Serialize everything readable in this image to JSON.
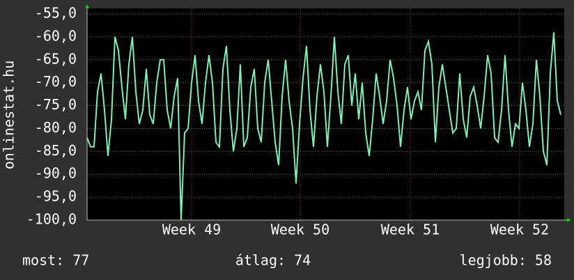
{
  "chart_data": {
    "type": "line",
    "y_label": "onlinestat.hu",
    "series": [
      {
        "color": "#7ef0b4",
        "values": [
          -82,
          -84,
          -84,
          -72,
          -68,
          -76,
          -86,
          -78,
          -60,
          -63,
          -71,
          -78,
          -66,
          -60,
          -72,
          -79,
          -76,
          -67,
          -77,
          -79,
          -70,
          -65,
          -65,
          -76,
          -80,
          -73,
          -69,
          -100,
          -81,
          -80,
          -70,
          -64,
          -74,
          -79,
          -70,
          -64,
          -70,
          -83,
          -84,
          -67,
          -62,
          -76,
          -85,
          -80,
          -66,
          -84,
          -82,
          -71,
          -67,
          -80,
          -83,
          -70,
          -65,
          -74,
          -83,
          -88,
          -73,
          -65,
          -74,
          -80,
          -92,
          -79,
          -69,
          -62,
          -76,
          -84,
          -73,
          -66,
          -72,
          -84,
          -73,
          -60,
          -72,
          -79,
          -66,
          -64,
          -75,
          -68,
          -78,
          -70,
          -81,
          -86,
          -78,
          -68,
          -73,
          -79,
          -74,
          -65,
          -69,
          -75,
          -84,
          -76,
          -71,
          -78,
          -74,
          -72,
          -76,
          -63,
          -61,
          -66,
          -83,
          -71,
          -66,
          -71,
          -76,
          -81,
          -80,
          -68,
          -78,
          -82,
          -73,
          -71,
          -75,
          -80,
          -73,
          -64,
          -68,
          -82,
          -83,
          -76,
          -64,
          -76,
          -84,
          -79,
          -80,
          -70,
          -76,
          -84,
          -79,
          -65,
          -73,
          -85,
          -88,
          -68,
          -59,
          -74,
          -77
        ]
      }
    ],
    "xlim": [
      0,
      136
    ],
    "xticks": [
      {
        "value": 30,
        "label": "Week 49"
      },
      {
        "value": 61.2,
        "label": "Week 50"
      },
      {
        "value": 92.8,
        "label": "Week 51"
      },
      {
        "value": 124.2,
        "label": "Week 52"
      }
    ],
    "ylim": [
      -100,
      -55
    ],
    "yticks": [
      {
        "value": -55,
        "label": "-55,0"
      },
      {
        "value": -60,
        "label": "-60,0"
      },
      {
        "value": -65,
        "label": "-65,0"
      },
      {
        "value": -70,
        "label": "-70,0"
      },
      {
        "value": -75,
        "label": "-75,0"
      },
      {
        "value": -80,
        "label": "-80,0"
      },
      {
        "value": -85,
        "label": "-85,0"
      },
      {
        "value": -90,
        "label": "-90,0"
      },
      {
        "value": -95,
        "label": "-95,0"
      },
      {
        "value": -100,
        "label": "-100,0"
      }
    ],
    "grid": true,
    "footer": [
      "most: 77",
      "átlag: 74",
      "legjobb: 58"
    ]
  }
}
